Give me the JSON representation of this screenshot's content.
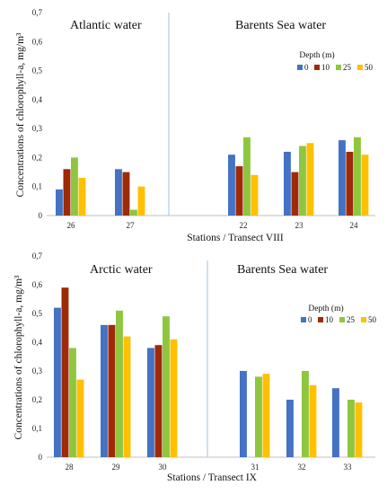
{
  "chart_data": [
    {
      "type": "bar",
      "categories": [
        "26",
        "27",
        "22",
        "23",
        "24"
      ],
      "series": [
        {
          "name": "0",
          "color": "#4472c4",
          "values": [
            0.09,
            0.16,
            0.21,
            0.22,
            0.26
          ]
        },
        {
          "name": "10",
          "color": "#9e2a08",
          "values": [
            0.16,
            0.15,
            0.17,
            0.15,
            0.22
          ]
        },
        {
          "name": "25",
          "color": "#8fc63f",
          "values": [
            0.2,
            0.02,
            0.27,
            0.24,
            0.27
          ]
        },
        {
          "name": "50",
          "color": "#ffc000",
          "values": [
            0.13,
            0.1,
            0.14,
            0.25,
            0.21
          ]
        }
      ],
      "ylabel": "Concentrations of chlorophyll-a, mg/m³",
      "xlabel": "Stations / Transect VIII",
      "ylim": [
        0,
        0.7
      ],
      "yticks": [
        "0",
        "0,1",
        "0,2",
        "0,3",
        "0,4",
        "0,5",
        "0,6",
        "0,7"
      ],
      "regions": [
        "Atlantic water",
        "Barents Sea water"
      ],
      "legend_title": "Depth (m)",
      "legend_position": "top-right"
    },
    {
      "type": "bar",
      "categories": [
        "28",
        "29",
        "30",
        "31",
        "32",
        "33"
      ],
      "series": [
        {
          "name": "0",
          "color": "#4472c4",
          "values": [
            0.52,
            0.46,
            0.38,
            0.3,
            0.2,
            0.24
          ]
        },
        {
          "name": "10",
          "color": "#9e2a08",
          "values": [
            0.59,
            0.46,
            0.39,
            0.0,
            0.0,
            0.0
          ]
        },
        {
          "name": "25",
          "color": "#8fc63f",
          "values": [
            0.38,
            0.51,
            0.49,
            0.28,
            0.3,
            0.2
          ]
        },
        {
          "name": "50",
          "color": "#ffc000",
          "values": [
            0.27,
            0.42,
            0.41,
            0.29,
            0.25,
            0.19
          ]
        }
      ],
      "ylabel": "Concentrations of chlorophyll-a, mg/m³",
      "xlabel": "Stations / Transect IX",
      "ylim": [
        0,
        0.7
      ],
      "yticks": [
        "0",
        "0,1",
        "0,2",
        "0,3",
        "0,4",
        "0,5",
        "0,6",
        "0,7"
      ],
      "regions": [
        "Arctic water",
        "Barents Sea water"
      ],
      "legend_title": "Depth (m)",
      "legend_position": "right"
    }
  ]
}
